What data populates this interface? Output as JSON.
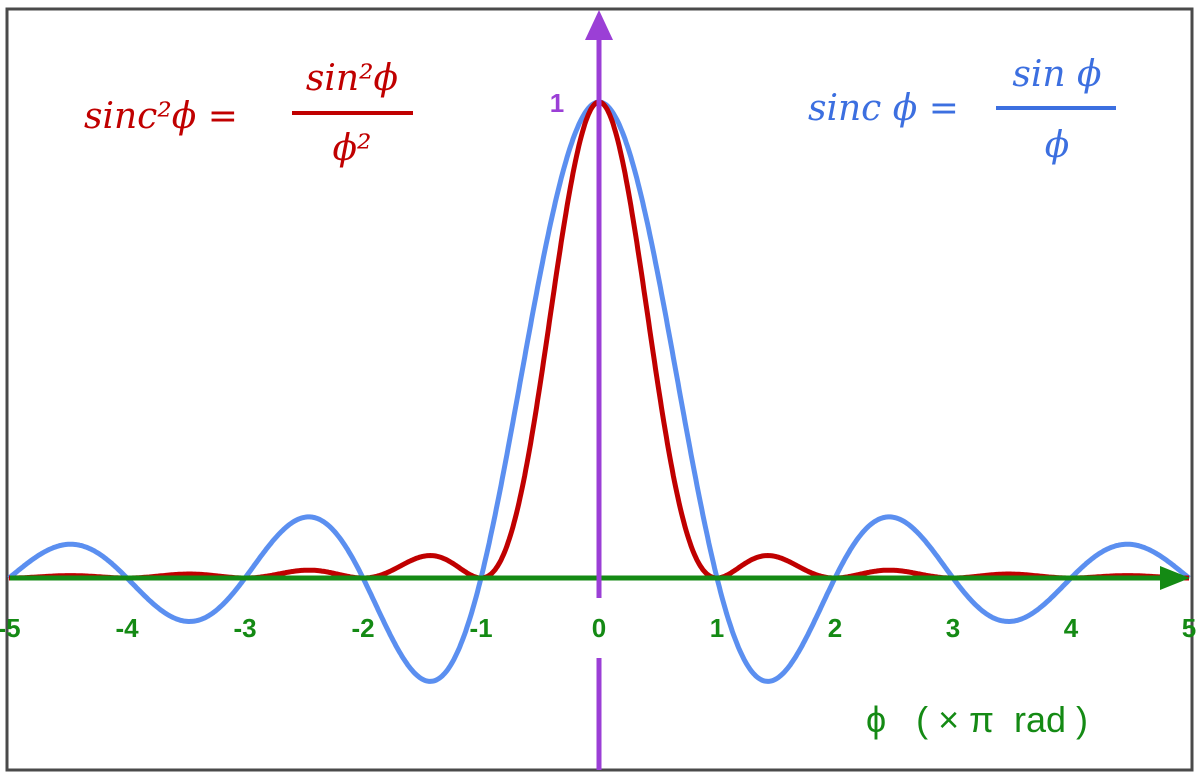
{
  "chart_data": {
    "type": "line",
    "title": "",
    "xlabel": "ϕ   ( × π  rad )",
    "xlim": [
      -5,
      5
    ],
    "ylim": [
      -0.217,
      1
    ],
    "x_ticks": [
      "-5",
      "-4",
      "-3",
      "-2",
      "-1",
      "0",
      "1",
      "2",
      "3",
      "4",
      "5"
    ],
    "y_ticks": [
      "1"
    ],
    "grid": false,
    "series": [
      {
        "name": "sinc ϕ = sin ϕ / ϕ",
        "function": "sinc",
        "color": "#5b8ff0"
      },
      {
        "name": "sinc²ϕ = sin²ϕ / ϕ²",
        "function": "sinc_squared",
        "color": "#c00000"
      }
    ],
    "legend": {
      "sinc_sq": {
        "lhs": "sinc²ϕ =",
        "num": "sin²ϕ",
        "den": "ϕ²",
        "placement": "top-left"
      },
      "sinc": {
        "lhs": "sinc ϕ =",
        "num": "sin ϕ",
        "den": "ϕ",
        "placement": "top-right"
      }
    },
    "colors": {
      "x_axis": "#148a14",
      "y_axis": "#9b3fd6",
      "frame": "#4a4a4a"
    }
  }
}
